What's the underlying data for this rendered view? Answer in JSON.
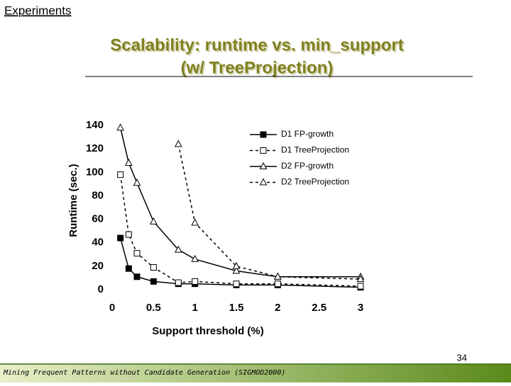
{
  "slide": {
    "section_link": "Experiments",
    "title_line1": "Scalability: runtime vs. min_support",
    "title_line2": "(w/ TreeProjection)",
    "page_number": "34",
    "footer": "Mining Frequent Patterns without Candidate Generation (SIGMOD2000)"
  },
  "chart_data": {
    "type": "line",
    "x_label": "Support threshold (%)",
    "y_label": "Runtime (sec.)",
    "x": [
      0.1,
      0.2,
      0.3,
      0.5,
      0.8,
      1,
      1.5,
      2,
      3
    ],
    "xlim": [
      0,
      3
    ],
    "xticks": [
      0,
      0.5,
      1,
      1.5,
      2,
      2.5,
      3
    ],
    "ylim": [
      0,
      140
    ],
    "yticks": [
      0,
      20,
      40,
      60,
      80,
      100,
      120,
      140
    ],
    "series": [
      {
        "name": "D1 FP-growth",
        "color": "#000000",
        "dashed": false,
        "marker": "square",
        "filled": true,
        "values": [
          44,
          18,
          11,
          7,
          5,
          5,
          4,
          4,
          2
        ]
      },
      {
        "name": "D1 TreeProjection",
        "color": "#000000",
        "dashed": true,
        "marker": "square",
        "filled": false,
        "values": [
          98,
          47,
          31,
          19,
          6,
          7,
          5,
          5,
          3
        ]
      },
      {
        "name": "D2 FP-growth",
        "color": "#000000",
        "dashed": false,
        "marker": "triangle",
        "filled": false,
        "values": [
          138,
          108,
          91,
          58,
          34,
          26,
          16,
          11,
          11
        ]
      },
      {
        "name": "D2 TreeProjection",
        "color": "#000000",
        "dashed": true,
        "marker": "triangle",
        "filled": false,
        "values": [
          null,
          null,
          null,
          null,
          124,
          57,
          20,
          11,
          9
        ]
      }
    ]
  }
}
